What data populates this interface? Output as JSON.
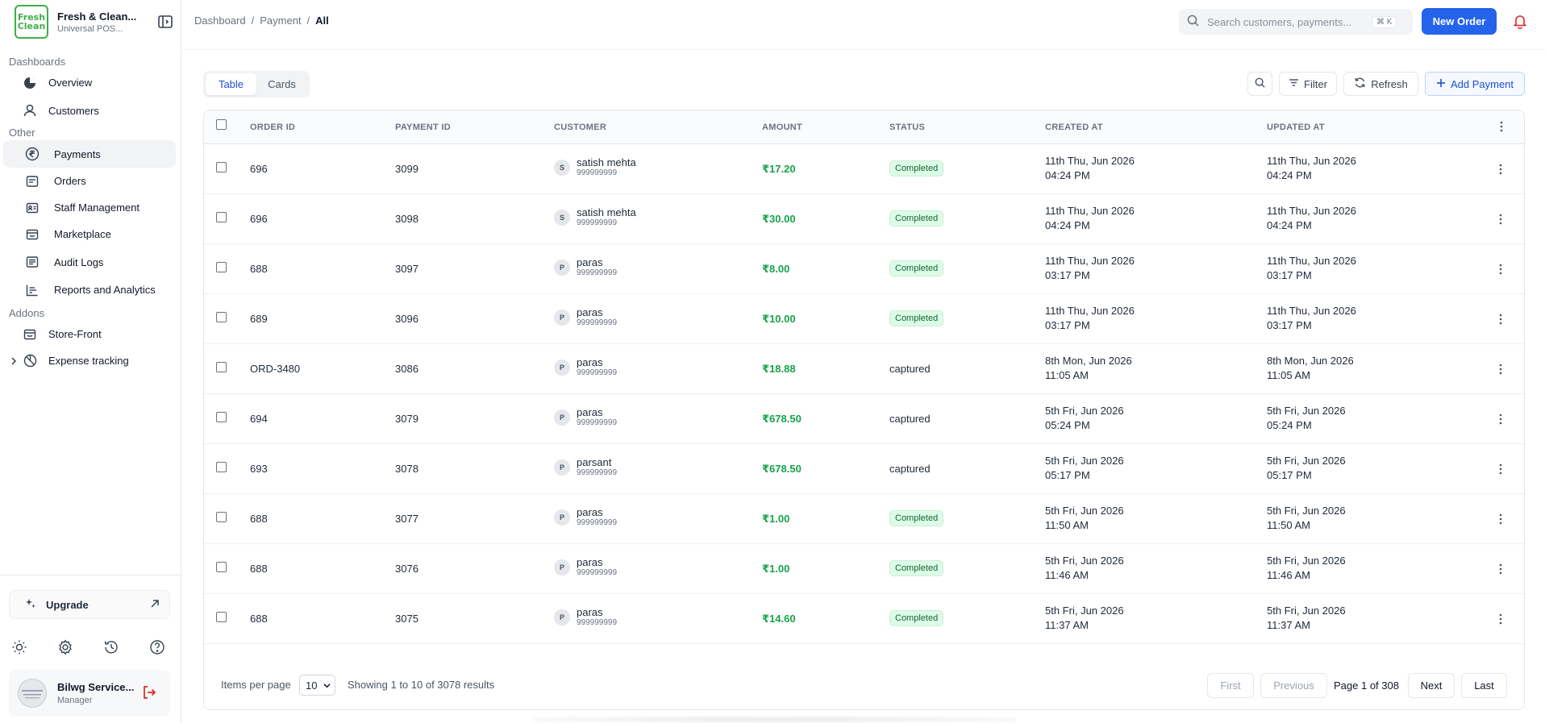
{
  "brand": {
    "logo_line1": "Fresh",
    "logo_line2": "Clean",
    "title": "Fresh & Clean...",
    "subtitle": "Universal POS..."
  },
  "sidebar": {
    "groups": [
      {
        "label": "Dashboards"
      },
      {
        "label": "Other"
      },
      {
        "label": "Addons"
      }
    ],
    "items": {
      "overview": "Overview",
      "customers": "Customers",
      "payments": "Payments",
      "orders": "Orders",
      "staff": "Staff Management",
      "marketplace": "Marketplace",
      "audit": "Audit Logs",
      "reports": "Reports and Analytics",
      "storefront": "Store-Front",
      "expense": "Expense tracking"
    },
    "upgrade_label": "Upgrade",
    "user": {
      "name": "Bilwg Service...",
      "role": "Manager"
    }
  },
  "header": {
    "breadcrumb": [
      "Dashboard",
      "Payment",
      "All"
    ],
    "search_placeholder": "Search customers, payments...",
    "search_shortcut": "⌘ K",
    "new_order_label": "New Order"
  },
  "toolbar": {
    "view_tabs": [
      "Table",
      "Cards"
    ],
    "active_view": "Table",
    "filter_label": "Filter",
    "refresh_label": "Refresh",
    "add_label": "Add Payment"
  },
  "table": {
    "columns": [
      "ORDER ID",
      "PAYMENT ID",
      "CUSTOMER",
      "AMOUNT",
      "STATUS",
      "CREATED AT",
      "UPDATED AT"
    ],
    "rows": [
      {
        "order": "696",
        "payment": "3099",
        "initial": "S",
        "name": "satish mehta",
        "phone": "999999999",
        "amount": "₹17.20",
        "status": "Completed",
        "created1": "11th Thu, Jun 2026",
        "created2": "04:24 PM",
        "updated1": "11th Thu, Jun 2026",
        "updated2": "04:24 PM"
      },
      {
        "order": "696",
        "payment": "3098",
        "initial": "S",
        "name": "satish mehta",
        "phone": "999999999",
        "amount": "₹30.00",
        "status": "Completed",
        "created1": "11th Thu, Jun 2026",
        "created2": "04:24 PM",
        "updated1": "11th Thu, Jun 2026",
        "updated2": "04:24 PM"
      },
      {
        "order": "688",
        "payment": "3097",
        "initial": "P",
        "name": "paras",
        "phone": "999999999",
        "amount": "₹8.00",
        "status": "Completed",
        "created1": "11th Thu, Jun 2026",
        "created2": "03:17 PM",
        "updated1": "11th Thu, Jun 2026",
        "updated2": "03:17 PM"
      },
      {
        "order": "689",
        "payment": "3096",
        "initial": "P",
        "name": "paras",
        "phone": "999999999",
        "amount": "₹10.00",
        "status": "Completed",
        "created1": "11th Thu, Jun 2026",
        "created2": "03:17 PM",
        "updated1": "11th Thu, Jun 2026",
        "updated2": "03:17 PM"
      },
      {
        "order": "ORD-3480",
        "payment": "3086",
        "initial": "P",
        "name": "paras",
        "phone": "999999999",
        "amount": "₹18.88",
        "status": "captured",
        "created1": "8th Mon, Jun 2026",
        "created2": "11:05 AM",
        "updated1": "8th Mon, Jun 2026",
        "updated2": "11:05 AM"
      },
      {
        "order": "694",
        "payment": "3079",
        "initial": "P",
        "name": "paras",
        "phone": "999999999",
        "amount": "₹678.50",
        "status": "captured",
        "created1": "5th Fri, Jun 2026",
        "created2": "05:24 PM",
        "updated1": "5th Fri, Jun 2026",
        "updated2": "05:24 PM"
      },
      {
        "order": "693",
        "payment": "3078",
        "initial": "P",
        "name": "parsant",
        "phone": "999999999",
        "amount": "₹678.50",
        "status": "captured",
        "created1": "5th Fri, Jun 2026",
        "created2": "05:17 PM",
        "updated1": "5th Fri, Jun 2026",
        "updated2": "05:17 PM"
      },
      {
        "order": "688",
        "payment": "3077",
        "initial": "P",
        "name": "paras",
        "phone": "999999999",
        "amount": "₹1.00",
        "status": "Completed",
        "created1": "5th Fri, Jun 2026",
        "created2": "11:50 AM",
        "updated1": "5th Fri, Jun 2026",
        "updated2": "11:50 AM"
      },
      {
        "order": "688",
        "payment": "3076",
        "initial": "P",
        "name": "paras",
        "phone": "999999999",
        "amount": "₹1.00",
        "status": "Completed",
        "created1": "5th Fri, Jun 2026",
        "created2": "11:46 AM",
        "updated1": "5th Fri, Jun 2026",
        "updated2": "11:46 AM"
      },
      {
        "order": "688",
        "payment": "3075",
        "initial": "P",
        "name": "paras",
        "phone": "999999999",
        "amount": "₹14.60",
        "status": "Completed",
        "created1": "5th Fri, Jun 2026",
        "created2": "11:37 AM",
        "updated1": "5th Fri, Jun 2026",
        "updated2": "11:37 AM"
      }
    ]
  },
  "pagination": {
    "items_per_page_label": "Items per page",
    "items_per_page_value": "10",
    "showing": "Showing 1 to 10 of 3078 results",
    "first": "First",
    "previous": "Previous",
    "page_info": "Page 1 of 308",
    "next": "Next",
    "last": "Last"
  },
  "colors": {
    "accent": "#2563eb",
    "amount": "#16a34a",
    "badge_bg": "#dcfce7",
    "logo": "#3fae49",
    "logout": "#dc2626"
  }
}
